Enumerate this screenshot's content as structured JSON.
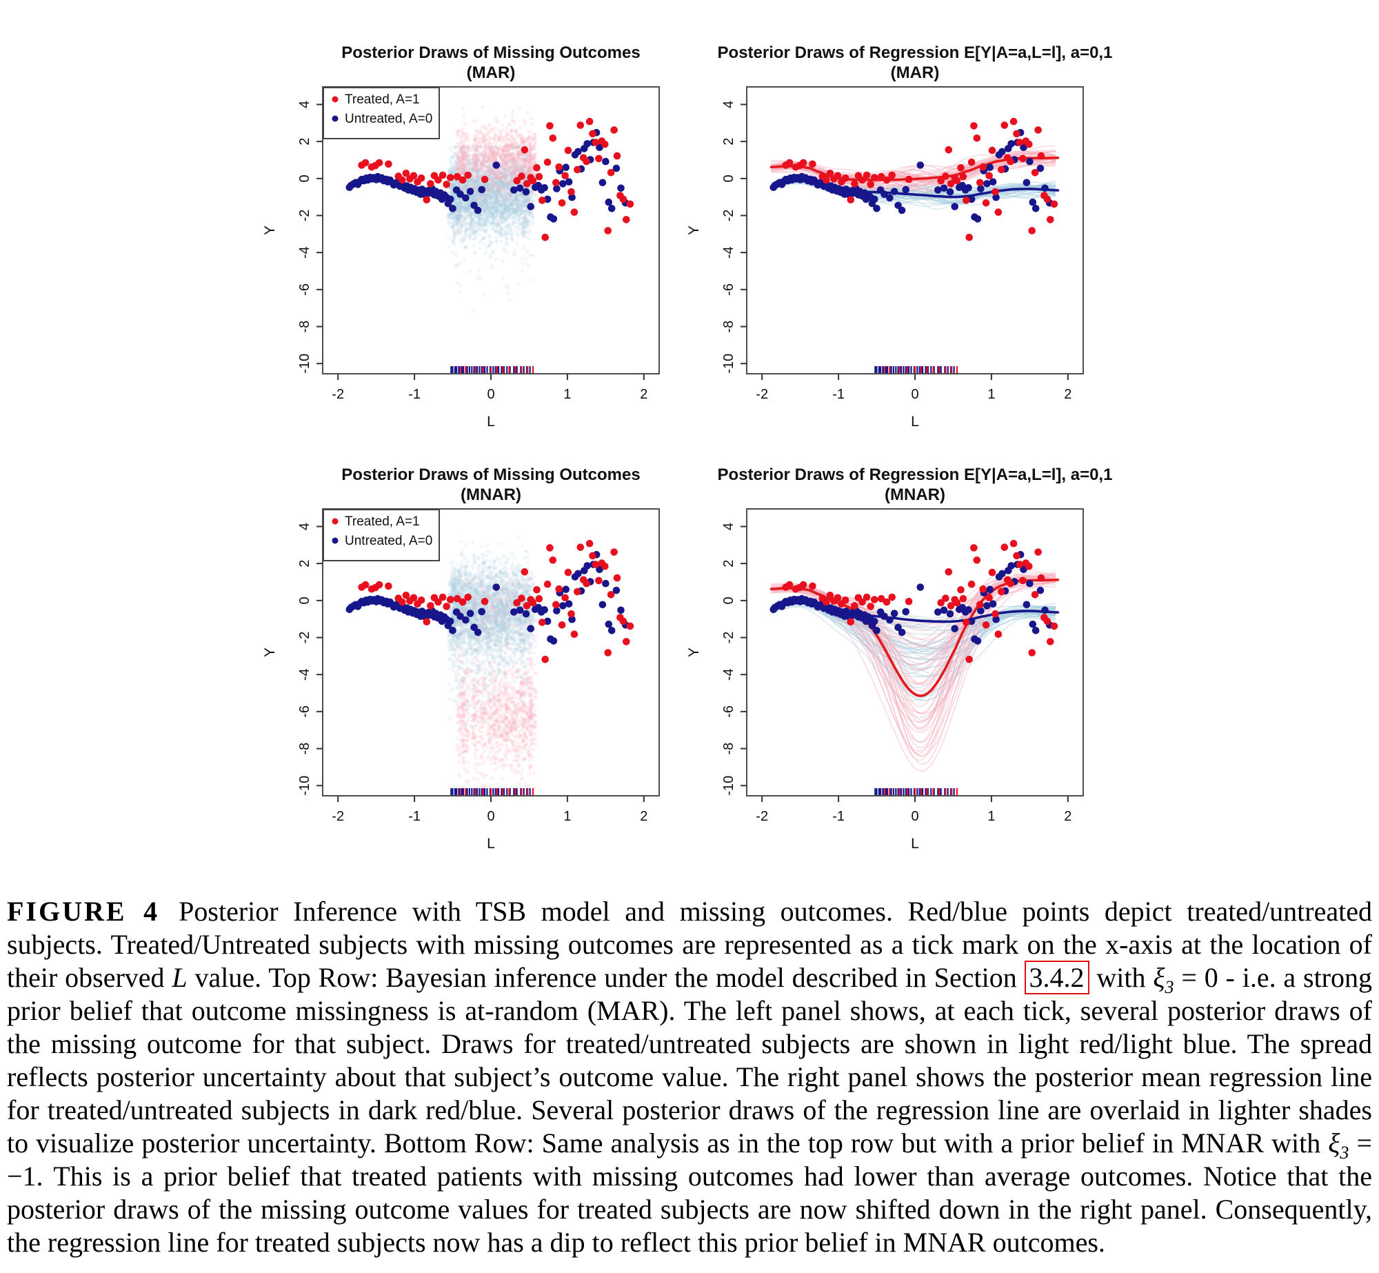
{
  "colors": {
    "treated": "#e8101e",
    "untreated": "#17178b",
    "treated_light": "#f6aab9",
    "untreated_light": "#a8cddf",
    "mean_treated": "#e31a1c",
    "mean_untreated": "#17178b",
    "axis": "#333333",
    "box": "#4d4d4d",
    "text": "#111111",
    "link_box": "#e01010",
    "legend_border": "#444444"
  },
  "chart_data": {
    "type": "scatter",
    "axes": {
      "xlabel": "L",
      "ylabel": "Y",
      "xticks": [
        -2,
        -1,
        0,
        1,
        2
      ],
      "yticks": [
        4,
        2,
        0,
        -2,
        -4,
        -6,
        -8,
        -10
      ],
      "xlim": [
        -2.2,
        2.2
      ],
      "ylim": [
        -10.55,
        4.95
      ]
    },
    "legend": {
      "items": [
        {
          "label": "Treated, A=1",
          "color": "treated"
        },
        {
          "label": "Untreated, A=0",
          "color": "untreated"
        }
      ]
    },
    "observed": {
      "treated": [
        [
          -1.69,
          0.72
        ],
        [
          -1.64,
          0.85
        ],
        [
          -1.56,
          0.62
        ],
        [
          -1.51,
          0.7
        ],
        [
          -1.46,
          0.85
        ],
        [
          -1.34,
          0.78
        ],
        [
          -1.21,
          0.12
        ],
        [
          -1.16,
          -0.08
        ],
        [
          -1.11,
          0.28
        ],
        [
          -1.06,
          -0.02
        ],
        [
          -1.01,
          0.15
        ],
        [
          -0.96,
          -0.18
        ],
        [
          -0.91,
          0.02
        ],
        [
          -0.84,
          -1.15
        ],
        [
          -0.79,
          -0.28
        ],
        [
          -0.74,
          0.15
        ],
        [
          -0.69,
          -0.08
        ],
        [
          -0.63,
          0.18
        ],
        [
          -0.58,
          -0.32
        ],
        [
          -0.53,
          0.05
        ],
        [
          -0.44,
          0.1
        ],
        [
          -0.37,
          -0.08
        ],
        [
          -0.3,
          0.18
        ],
        [
          -0.08,
          -0.05
        ],
        [
          0.34,
          -0.12
        ],
        [
          0.4,
          0.12
        ],
        [
          0.44,
          1.55
        ],
        [
          0.47,
          -0.28
        ],
        [
          0.52,
          0.05
        ],
        [
          0.55,
          -0.12
        ],
        [
          0.6,
          0.58
        ],
        [
          0.63,
          0.1
        ],
        [
          0.67,
          -1.18
        ],
        [
          0.71,
          -3.18
        ],
        [
          0.74,
          0.88
        ],
        [
          0.77,
          2.85
        ],
        [
          0.81,
          2.18
        ],
        [
          0.85,
          -0.22
        ],
        [
          0.89,
          0.62
        ],
        [
          0.93,
          -1.32
        ],
        [
          0.97,
          0.15
        ],
        [
          1.01,
          1.52
        ],
        [
          1.05,
          -0.72
        ],
        [
          1.09,
          -1.82
        ],
        [
          1.13,
          0.48
        ],
        [
          1.17,
          2.88
        ],
        [
          1.21,
          1.12
        ],
        [
          1.25,
          0.92
        ],
        [
          1.29,
          3.08
        ],
        [
          1.33,
          2.42
        ],
        [
          1.37,
          1.95
        ],
        [
          1.41,
          1.08
        ],
        [
          1.45,
          2.02
        ],
        [
          1.49,
          1.85
        ],
        [
          1.53,
          -2.82
        ],
        [
          1.57,
          0.32
        ],
        [
          1.61,
          2.62
        ],
        [
          1.65,
          1.22
        ],
        [
          1.69,
          -0.92
        ],
        [
          1.73,
          -1.12
        ],
        [
          1.77,
          -2.22
        ],
        [
          1.82,
          -1.38
        ]
      ],
      "untreated": [
        [
          -1.85,
          -0.48
        ],
        [
          -1.83,
          -0.38
        ],
        [
          -1.8,
          -0.3
        ],
        [
          -1.77,
          -0.22
        ],
        [
          -1.74,
          -0.32
        ],
        [
          -1.71,
          -0.15
        ],
        [
          -1.69,
          -0.05
        ],
        [
          -1.66,
          -0.12
        ],
        [
          -1.63,
          0.02
        ],
        [
          -1.61,
          -0.08
        ],
        [
          -1.58,
          0.06
        ],
        [
          -1.56,
          -0.02
        ],
        [
          -1.53,
          0.05
        ],
        [
          -1.5,
          -0.06
        ],
        [
          -1.48,
          0.1
        ],
        [
          -1.45,
          -0.02
        ],
        [
          -1.43,
          0.04
        ],
        [
          -1.4,
          -0.12
        ],
        [
          -1.37,
          -0.04
        ],
        [
          -1.35,
          -0.18
        ],
        [
          -1.32,
          -0.08
        ],
        [
          -1.29,
          -0.22
        ],
        [
          -1.27,
          -0.35
        ],
        [
          -1.24,
          -0.28
        ],
        [
          -1.21,
          -0.12
        ],
        [
          -1.19,
          -0.42
        ],
        [
          -1.16,
          -0.3
        ],
        [
          -1.13,
          -0.52
        ],
        [
          -1.1,
          -0.4
        ],
        [
          -1.08,
          -0.62
        ],
        [
          -1.05,
          -0.48
        ],
        [
          -1.02,
          -0.68
        ],
        [
          -1.0,
          -0.55
        ],
        [
          -0.97,
          -0.75
        ],
        [
          -0.95,
          -0.62
        ],
        [
          -0.92,
          -0.85
        ],
        [
          -0.9,
          -0.58
        ],
        [
          -0.87,
          -0.72
        ],
        [
          -0.85,
          -0.92
        ],
        [
          -0.82,
          -0.65
        ],
        [
          -0.8,
          -0.78
        ],
        [
          -0.77,
          -0.55
        ],
        [
          -0.74,
          -0.88
        ],
        [
          -0.72,
          -0.7
        ],
        [
          -0.69,
          -0.95
        ],
        [
          -0.66,
          -0.78
        ],
        [
          -0.64,
          -1.12
        ],
        [
          -0.61,
          -0.88
        ],
        [
          -0.58,
          -1.02
        ],
        [
          -0.56,
          -1.35
        ],
        [
          -0.53,
          -1.12
        ],
        [
          -0.5,
          -1.62
        ],
        [
          -0.45,
          -0.62
        ],
        [
          -0.4,
          -0.85
        ],
        [
          -0.33,
          -1.05
        ],
        [
          -0.27,
          -0.7
        ],
        [
          -0.22,
          -1.45
        ],
        [
          -0.17,
          -1.72
        ],
        [
          -0.12,
          -0.6
        ],
        [
          0.07,
          0.72
        ],
        [
          0.3,
          -0.62
        ],
        [
          0.38,
          -0.52
        ],
        [
          0.46,
          -0.72
        ],
        [
          0.52,
          -1.52
        ],
        [
          0.58,
          -0.48
        ],
        [
          0.62,
          -0.38
        ],
        [
          0.66,
          -0.62
        ],
        [
          0.7,
          -0.5
        ],
        [
          0.74,
          -1.12
        ],
        [
          0.78,
          -2.08
        ],
        [
          0.82,
          -2.18
        ],
        [
          0.86,
          -0.55
        ],
        [
          0.9,
          0.42
        ],
        [
          0.94,
          -0.28
        ],
        [
          0.98,
          0.6
        ],
        [
          1.02,
          -0.18
        ],
        [
          1.06,
          -1.02
        ],
        [
          1.1,
          1.28
        ],
        [
          1.14,
          1.45
        ],
        [
          1.18,
          0.52
        ],
        [
          1.22,
          1.62
        ],
        [
          1.26,
          1.88
        ],
        [
          1.3,
          1.02
        ],
        [
          1.34,
          1.95
        ],
        [
          1.38,
          2.48
        ],
        [
          1.42,
          1.68
        ],
        [
          1.46,
          -0.22
        ],
        [
          1.5,
          0.92
        ],
        [
          1.54,
          -1.28
        ],
        [
          1.58,
          -1.62
        ],
        [
          1.64,
          0.55
        ],
        [
          1.7,
          -0.52
        ],
        [
          1.76,
          -1.32
        ]
      ]
    },
    "rug": {
      "treated": [
        -0.4,
        -0.33,
        -0.2,
        -0.1,
        0.0,
        0.08,
        0.16,
        0.24,
        0.32,
        0.4,
        0.48,
        0.55
      ],
      "untreated": [
        -0.52,
        -0.5,
        -0.47,
        -0.45,
        -0.42,
        -0.38,
        -0.36,
        -0.31,
        -0.28,
        -0.25,
        -0.22,
        -0.18,
        -0.15,
        -0.12,
        -0.08,
        -0.05,
        -0.01,
        0.03,
        0.06,
        0.1,
        0.14,
        0.17,
        0.21,
        0.25,
        0.3,
        0.34,
        0.39,
        0.43,
        0.47,
        0.51
      ]
    },
    "regression_base": {
      "treated": [
        [
          -1.88,
          0.62
        ],
        [
          -1.7,
          0.66
        ],
        [
          -1.55,
          0.66
        ],
        [
          -1.4,
          0.58
        ],
        [
          -1.25,
          0.35
        ],
        [
          -1.1,
          0.1
        ],
        [
          -1.0,
          0.0
        ],
        [
          -0.85,
          -0.05
        ],
        [
          -0.7,
          -0.07
        ],
        [
          -0.5,
          -0.08
        ],
        [
          -0.3,
          -0.07
        ],
        [
          -0.1,
          -0.04
        ],
        [
          0.1,
          0.0
        ],
        [
          0.3,
          0.06
        ],
        [
          0.5,
          0.15
        ],
        [
          0.7,
          0.42
        ],
        [
          0.9,
          0.72
        ],
        [
          1.1,
          0.95
        ],
        [
          1.3,
          1.08
        ],
        [
          1.5,
          1.1
        ],
        [
          1.7,
          1.1
        ],
        [
          1.88,
          1.12
        ]
      ],
      "untreated": [
        [
          -1.88,
          -0.45
        ],
        [
          -1.75,
          -0.22
        ],
        [
          -1.6,
          -0.06
        ],
        [
          -1.45,
          -0.04
        ],
        [
          -1.3,
          -0.18
        ],
        [
          -1.15,
          -0.42
        ],
        [
          -1.0,
          -0.62
        ],
        [
          -0.85,
          -0.7
        ],
        [
          -0.7,
          -0.72
        ],
        [
          -0.5,
          -0.74
        ],
        [
          -0.3,
          -0.78
        ],
        [
          -0.1,
          -0.84
        ],
        [
          0.1,
          -0.9
        ],
        [
          0.3,
          -0.96
        ],
        [
          0.5,
          -1.0
        ],
        [
          0.7,
          -0.95
        ],
        [
          0.9,
          -0.8
        ],
        [
          1.1,
          -0.66
        ],
        [
          1.3,
          -0.58
        ],
        [
          1.5,
          -0.56
        ],
        [
          1.7,
          -0.6
        ],
        [
          1.88,
          -0.64
        ]
      ]
    },
    "panels": [
      {
        "id": "missing-mar",
        "kind": "missing",
        "legend": true,
        "seed": 101,
        "title1": "Posterior Draws of Missing Outcomes",
        "title2": "(MAR)",
        "clouds": {
          "untreated": {
            "comps": [
              {
                "frac": 0.9,
                "center": -0.9,
                "sd": 1.0
              },
              {
                "frac": 0.1,
                "center": -1.6,
                "sd": 2.2
              }
            ],
            "clamp": [
              -7.2,
              1.7
            ]
          },
          "treated": {
            "comps": [
              {
                "frac": 0.94,
                "center": 1.0,
                "sd": 0.9
              },
              {
                "frac": 0.06,
                "center": 0.2,
                "sd": 1.7
              }
            ],
            "clamp": [
              -2.9,
              4.05
            ]
          }
        }
      },
      {
        "id": "regression-mar",
        "kind": "regression",
        "legend": false,
        "seed": 202,
        "title1": "Posterior Draws of Regression E[Y|A=a,L=l], a=0,1",
        "title2": "(MAR)",
        "draws": {
          "n": 42,
          "offset_sd": 0.16,
          "wiggle_base": 0.12,
          "wiggle_mid": 0.55
        },
        "dip": {
          "treated": null,
          "untreated": null
        }
      },
      {
        "id": "missing-mnar",
        "kind": "missing",
        "legend": true,
        "seed": 303,
        "title1": "Posterior Draws of Missing Outcomes",
        "title2": "(MNAR)",
        "clouds": {
          "untreated": {
            "comps": [
              {
                "frac": 0.82,
                "center": -0.45,
                "sd": 1.15
              },
              {
                "frac": 0.18,
                "center": -2.2,
                "sd": 1.9
              }
            ],
            "clamp": [
              -6.8,
              4.45
            ]
          },
          "treated": {
            "comps": [
              {
                "frac": 0.85,
                "center": -6.3,
                "sd": 1.55
              },
              {
                "frac": 0.15,
                "center": -0.5,
                "sd": 0.95
              }
            ],
            "clamp": [
              -10.35,
              1.3
            ]
          }
        }
      },
      {
        "id": "regression-mnar",
        "kind": "regression",
        "legend": false,
        "seed": 404,
        "title1": "Posterior Draws of Regression E[Y|A=a,L=l], a=0,1",
        "title2": "(MNAR)",
        "draws": {
          "n": 42,
          "offset_sd": 0.16,
          "wiggle_base": 0.12,
          "wiggle_mid": 0.45
        },
        "dip": {
          "treated": {
            "center": 0.08,
            "width": 0.4,
            "mean_depth": 5.15,
            "depth_min": 1.2,
            "depth_max": 9.2
          },
          "untreated": {
            "center": 0.05,
            "width": 0.5,
            "mean_depth": 0.2,
            "depth_min": 0.0,
            "depth_max": 4.6
          }
        }
      }
    ]
  },
  "caption": {
    "segments": [
      {
        "text": "FIGURE 4",
        "b": true
      },
      {
        "text": "Posterior Inference with TSB model and missing outcomes. Red/blue points depict treated/untreated subjects. Treated/Untreated subjects with missing outcomes are represented as a tick mark on the x-axis at the location of their observed "
      },
      {
        "text": "L",
        "i": true
      },
      {
        "text": " value. Top Row: Bayesian inference under the model described in Section "
      },
      {
        "text": "3.4.2",
        "box": true
      },
      {
        "text": " with "
      },
      {
        "text": "ξ",
        "i": true
      },
      {
        "text": "3",
        "sub": true
      },
      {
        "text": " = 0 - i.e. a strong prior belief that outcome missingness is at-random (MAR). The left panel shows, at each tick, several posterior draws of the missing outcome for that subject. Draws for treated/untreated subjects are shown in light red/light blue. The spread reflects posterior uncertainty about that subject’s outcome value. The right panel shows the posterior mean regression line for treated/untreated subjects in dark red/blue. Several posterior draws of the regression line are overlaid in lighter shades to visualize posterior uncertainty. Bottom Row: Same analysis as in the top row but with a prior belief in MNAR with "
      },
      {
        "text": "ξ",
        "i": true
      },
      {
        "text": "3",
        "sub": true
      },
      {
        "text": " = −1. This is a prior belief that treated patients with missing outcomes had lower than average outcomes. Notice that the posterior draws of the missing outcome values for treated subjects are now shifted down in the right panel. Consequently, the regression line for treated subjects now has a dip to reflect this prior belief in MNAR outcomes."
      }
    ]
  }
}
